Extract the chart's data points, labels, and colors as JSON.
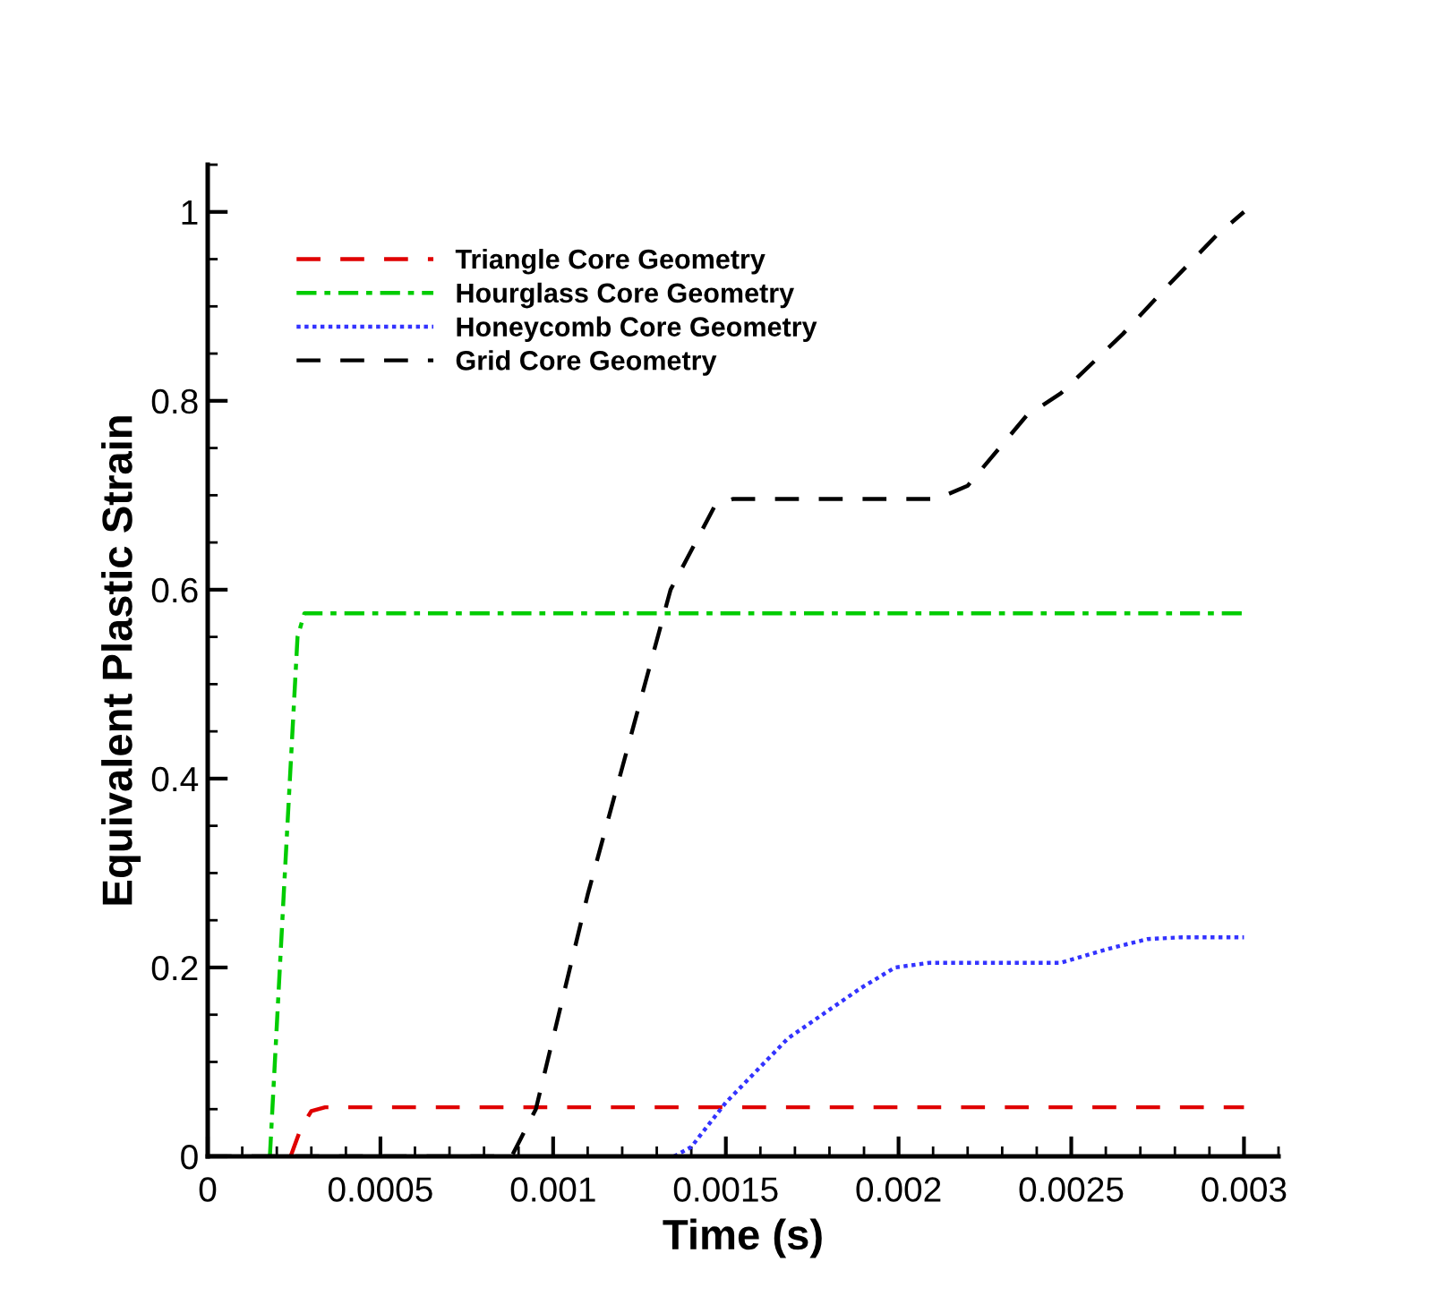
{
  "chart_data": {
    "type": "line",
    "xlabel": "Time (s)",
    "ylabel": "Equivalent Plastic Strain",
    "xlim": [
      0,
      0.0031
    ],
    "ylim": [
      0,
      1.05
    ],
    "xticks": [
      0,
      0.0005,
      0.001,
      0.0015,
      0.002,
      0.0025,
      0.003
    ],
    "yticks": [
      0,
      0.2,
      0.4,
      0.6,
      0.8,
      1
    ],
    "grid": false,
    "legend": "top left",
    "marker": "none",
    "series": [
      {
        "name": "Triangle Core Geometry",
        "color": "#e00000",
        "line_style": "dashed",
        "x": [
          0.00024,
          0.00027,
          0.0003,
          0.00034,
          0.003
        ],
        "values": [
          0,
          0.03,
          0.048,
          0.052,
          0.052
        ]
      },
      {
        "name": "Hourglass Core Geometry",
        "color": "#00cc00",
        "line_style": "dashdot",
        "x": [
          0.00018,
          0.00022,
          0.00026,
          0.00028,
          0.003
        ],
        "values": [
          0,
          0.277,
          0.55,
          0.575,
          0.575
        ]
      },
      {
        "name": "Honeycomb Core Geometry",
        "color": "#3333ff",
        "line_style": "dotted",
        "x": [
          0.00135,
          0.0014,
          0.0015,
          0.00168,
          0.00189,
          0.00199,
          0.00209,
          0.00247,
          0.00261,
          0.00272,
          0.00282,
          0.003
        ],
        "values": [
          0,
          0.01,
          0.057,
          0.125,
          0.178,
          0.2,
          0.205,
          0.205,
          0.22,
          0.23,
          0.232,
          0.232
        ]
      },
      {
        "name": "Grid Core Geometry",
        "color": "#000000",
        "line_style": "dashed",
        "x": [
          0,
          0.00088,
          0.00095,
          0.0011,
          0.00134,
          0.00147,
          0.00152,
          0.00211,
          0.0022,
          0.00237,
          0.00247,
          0.00265,
          0.00278,
          0.00292,
          0.003
        ],
        "values": [
          0,
          0,
          0.05,
          0.277,
          0.6,
          0.69,
          0.696,
          0.696,
          0.71,
          0.784,
          0.808,
          0.871,
          0.922,
          0.975,
          1.0
        ]
      }
    ]
  }
}
